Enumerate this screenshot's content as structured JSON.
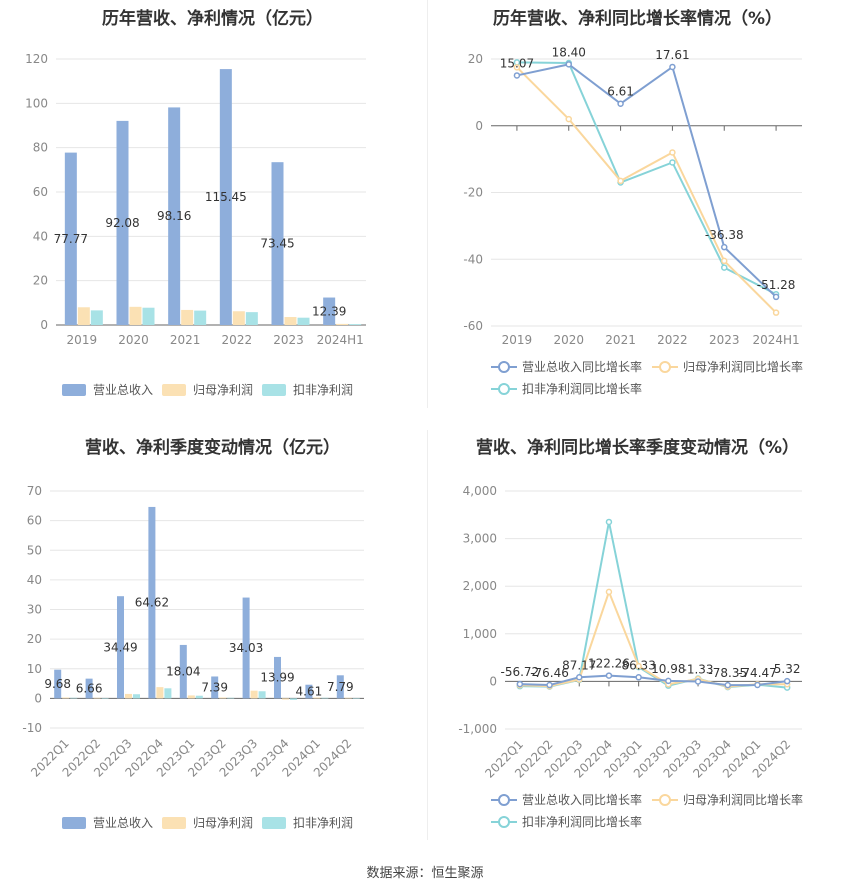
{
  "footer": {
    "prefix": "数据来源：",
    "source": "恒生聚源"
  },
  "colors": {
    "revenue": "#8eaedb",
    "parent": "#fbe1b4",
    "deducted": "#a8e2e6",
    "revenue_line": "#7f9fd1",
    "parent_line": "#fad79d",
    "deducted_line": "#86d3d8"
  },
  "chart_data": [
    {
      "id": "annual_amount",
      "type": "bar",
      "title": "历年营收、净利情况（亿元）",
      "categories": [
        "2019",
        "2020",
        "2021",
        "2022",
        "2023",
        "2024H1"
      ],
      "ylim": [
        0,
        120
      ],
      "yticks": [
        0,
        20,
        40,
        60,
        80,
        100,
        120
      ],
      "series": [
        {
          "name": "营业总收入",
          "values": [
            77.77,
            92.08,
            98.16,
            115.45,
            73.45,
            12.39
          ],
          "labels": [
            "77.77",
            "92.08",
            "98.16",
            "115.45",
            "73.45",
            "12.39"
          ]
        },
        {
          "name": "归母净利润",
          "values": [
            8.0,
            8.2,
            6.8,
            6.2,
            3.6,
            0.5
          ]
        },
        {
          "name": "扣非净利润",
          "values": [
            6.6,
            7.8,
            6.5,
            5.8,
            3.3,
            0.4
          ]
        }
      ]
    },
    {
      "id": "annual_growth",
      "type": "line",
      "title": "历年营收、净利同比增长率情况（%）",
      "categories": [
        "2019",
        "2020",
        "2021",
        "2022",
        "2023",
        "2024H1"
      ],
      "ylim": [
        -60,
        20
      ],
      "yticks": [
        -60,
        -40,
        -20,
        0,
        20
      ],
      "series": [
        {
          "name": "营业总收入同比增长率",
          "values": [
            15.07,
            18.4,
            6.61,
            17.61,
            -36.38,
            -51.28
          ],
          "labels": [
            "15.07",
            "18.40",
            "6.61",
            "17.61",
            "-36.38",
            "-51.28"
          ]
        },
        {
          "name": "归母净利润同比增长率",
          "values": [
            17.5,
            2.0,
            -16.5,
            -8.0,
            -40.5,
            -56.0
          ]
        },
        {
          "name": "扣非净利润同比增长率",
          "values": [
            19.0,
            18.8,
            -17.0,
            -11.0,
            -42.5,
            -50.5
          ]
        }
      ]
    },
    {
      "id": "quarterly_amount",
      "type": "bar",
      "title": "营收、净利季度变动情况（亿元）",
      "categories": [
        "2022Q1",
        "2022Q2",
        "2022Q3",
        "2022Q4",
        "2023Q1",
        "2023Q2",
        "2023Q3",
        "2023Q4",
        "2024Q1",
        "2024Q2"
      ],
      "ylim": [
        -10,
        70
      ],
      "yticks": [
        -10,
        0,
        10,
        20,
        30,
        40,
        50,
        60,
        70
      ],
      "series": [
        {
          "name": "营业总收入",
          "values": [
            9.68,
            6.66,
            34.49,
            64.62,
            18.04,
            7.39,
            34.03,
            13.99,
            4.61,
            7.79
          ],
          "labels": [
            "9.68",
            "6.66",
            "34.49",
            "64.62",
            "18.04",
            "7.39",
            "34.03",
            "13.99",
            "4.61",
            "7.79"
          ]
        },
        {
          "name": "归母净利润",
          "values": [
            0.3,
            0.2,
            1.5,
            3.8,
            1.0,
            0.3,
            2.6,
            -0.4,
            0.3,
            0.2
          ]
        },
        {
          "name": "扣非净利润",
          "values": [
            0.2,
            0.1,
            1.4,
            3.4,
            0.9,
            0.2,
            2.4,
            -0.5,
            0.2,
            0.1
          ]
        }
      ]
    },
    {
      "id": "quarterly_growth",
      "type": "line",
      "title": "营收、净利同比增长率季度变动情况（%）",
      "categories": [
        "2022Q1",
        "2022Q2",
        "2022Q3",
        "2022Q4",
        "2023Q1",
        "2023Q2",
        "2023Q3",
        "2023Q4",
        "2024Q1",
        "2024Q2"
      ],
      "ylim": [
        -1000,
        4000
      ],
      "yticks": [
        -1000,
        0,
        1000,
        2000,
        3000,
        4000
      ],
      "ytick_labels": [
        "-1,000",
        "0",
        "1,000",
        "2,000",
        "3,000",
        "4,000"
      ],
      "series": [
        {
          "name": "营业总收入同比增长率",
          "values": [
            -56.72,
            -76.46,
            87.17,
            122.26,
            86.33,
            10.98,
            -1.33,
            -78.35,
            -74.47,
            5.32
          ],
          "labels": [
            "-56.72",
            "-76.46",
            "87.17",
            "122.26",
            "86.33",
            "10.98",
            "-1.33",
            "-78.35",
            "-74.47",
            "5.32"
          ]
        },
        {
          "name": "归母净利润同比增长率",
          "values": [
            -80,
            -100,
            40,
            1880,
            320,
            -60,
            50,
            -110,
            -60,
            -60
          ]
        },
        {
          "name": "扣非净利润同比增长率",
          "values": [
            -100,
            -110,
            30,
            3350,
            300,
            -90,
            60,
            -120,
            -70,
            -130
          ]
        }
      ]
    }
  ]
}
